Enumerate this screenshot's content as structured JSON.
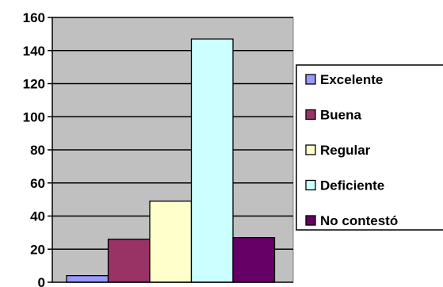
{
  "chart_data": {
    "type": "bar",
    "categories": [
      "Excelente",
      "Buena",
      "Regular",
      "Deficiente",
      "No contestó"
    ],
    "values": [
      4,
      26,
      49,
      147,
      27
    ],
    "series_colors": [
      "#9999ff",
      "#993366",
      "#ffffcc",
      "#ccffff",
      "#660066"
    ],
    "ylim": [
      0,
      160
    ],
    "yticks": [
      0,
      20,
      40,
      60,
      80,
      100,
      120,
      140,
      160
    ],
    "grid": true,
    "plot_background": "#c0c0c0",
    "legend": {
      "placement": "right",
      "entries": [
        "Excelente",
        "Buena",
        "Regular",
        "Deficiente",
        "No contestó"
      ]
    },
    "title": "",
    "xlabel": "",
    "ylabel": ""
  }
}
